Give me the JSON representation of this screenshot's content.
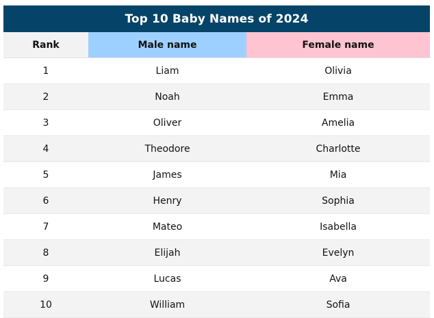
{
  "table": {
    "title": "Top 10 Baby Names of 2024",
    "headers": {
      "rank": "Rank",
      "male": "Male name",
      "female": "Female name"
    },
    "rows": [
      {
        "rank": "1",
        "male": "Liam",
        "female": "Olivia"
      },
      {
        "rank": "2",
        "male": "Noah",
        "female": "Emma"
      },
      {
        "rank": "3",
        "male": "Oliver",
        "female": "Amelia"
      },
      {
        "rank": "4",
        "male": "Theodore",
        "female": "Charlotte"
      },
      {
        "rank": "5",
        "male": "James",
        "female": "Mia"
      },
      {
        "rank": "6",
        "male": "Henry",
        "female": "Sophia"
      },
      {
        "rank": "7",
        "male": "Mateo",
        "female": "Isabella"
      },
      {
        "rank": "8",
        "male": "Elijah",
        "female": "Evelyn"
      },
      {
        "rank": "9",
        "male": "Lucas",
        "female": "Ava"
      },
      {
        "rank": "10",
        "male": "William",
        "female": "Sofia"
      }
    ]
  },
  "colors": {
    "title_bg": "#054468",
    "male_header": "#9ed0ff",
    "female_header": "#ffc4d2",
    "rank_header": "#f2f2f2",
    "alt_row": "#f3f3f3"
  }
}
